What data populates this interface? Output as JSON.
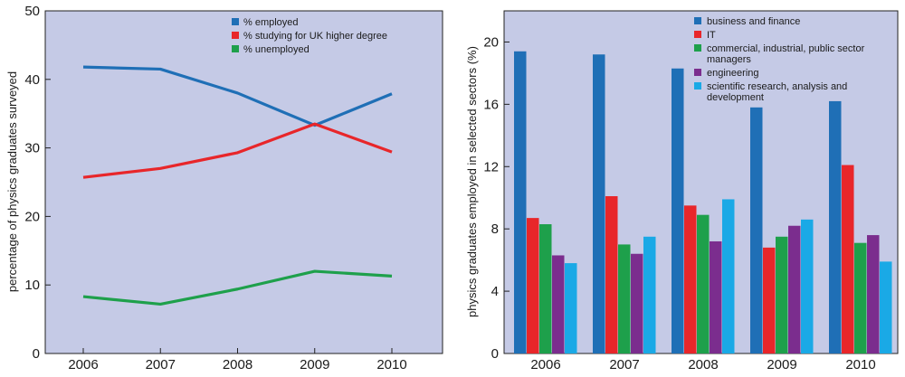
{
  "chart_data": [
    {
      "type": "line",
      "x": [
        "2006",
        "2007",
        "2008",
        "2009",
        "2010"
      ],
      "series": [
        {
          "name": "% employed",
          "color": "#1f6fb6",
          "values": [
            41.8,
            41.5,
            38.0,
            33.3,
            37.9
          ]
        },
        {
          "name": "% studying for UK higher degree",
          "color": "#e8262a",
          "values": [
            25.7,
            27.0,
            29.3,
            33.5,
            29.4
          ]
        },
        {
          "name": "% unemployed",
          "color": "#1ea04b",
          "values": [
            8.3,
            7.2,
            9.4,
            12.0,
            11.3
          ]
        }
      ],
      "xlabel": "",
      "ylabel": "percentage of physics graduates surveyed",
      "ylim": [
        0,
        50
      ],
      "yticks": [
        "0",
        "10",
        "20",
        "30",
        "40",
        "50"
      ],
      "grid": false,
      "legend": "top-center",
      "background": "#c5cae6"
    },
    {
      "type": "bar",
      "categories": [
        "2006",
        "2007",
        "2008",
        "2009",
        "2010"
      ],
      "series": [
        {
          "name": "business and finance",
          "color": "#1f6fb6",
          "values": [
            19.4,
            19.2,
            18.3,
            15.8,
            16.2
          ]
        },
        {
          "name": "IT",
          "color": "#e8262a",
          "values": [
            8.7,
            10.1,
            9.5,
            6.8,
            12.1
          ]
        },
        {
          "name": "commercial, industrial, public sector managers",
          "color": "#1ea04b",
          "values": [
            8.3,
            7.0,
            8.9,
            7.5,
            7.1
          ]
        },
        {
          "name": "engineering",
          "color": "#7b2d8e",
          "values": [
            6.3,
            6.4,
            7.2,
            8.2,
            7.6
          ]
        },
        {
          "name": "scientific research, analysis and development",
          "color": "#1aa9e6",
          "values": [
            5.8,
            7.5,
            9.9,
            8.6,
            5.9
          ]
        }
      ],
      "xlabel": "",
      "ylabel": "physics graduates employed in selected sectors (%)",
      "ylim": [
        0,
        22
      ],
      "yticks": [
        "0",
        "4",
        "8",
        "12",
        "16",
        "20"
      ],
      "grid": false,
      "legend": "top-right",
      "background": "#c5cae6"
    }
  ]
}
